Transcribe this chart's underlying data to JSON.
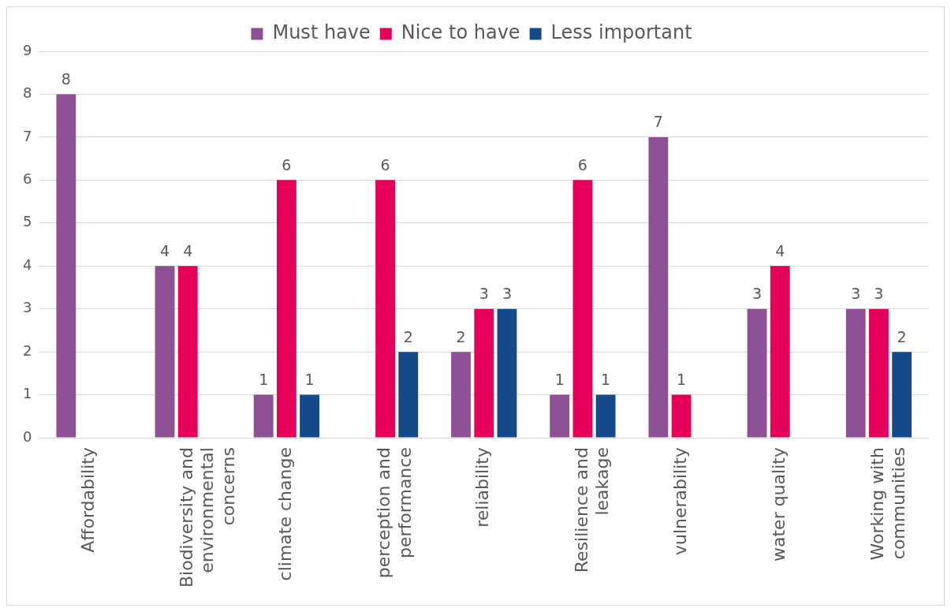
{
  "chart_data": {
    "type": "bar",
    "categories": [
      "Affordability",
      "Biodiversity and environmental concerns",
      "climate change",
      "perception and performance",
      "reliability",
      "Resilience and leakage",
      "vulnerability",
      "water quality",
      "Working with communities"
    ],
    "series": [
      {
        "name": "Must have",
        "color": "#8e5094",
        "values": [
          8,
          4,
          1,
          null,
          2,
          1,
          7,
          3,
          3
        ]
      },
      {
        "name": "Nice to have",
        "color": "#e5005a",
        "values": [
          null,
          4,
          6,
          6,
          3,
          6,
          1,
          4,
          3
        ]
      },
      {
        "name": "Less important",
        "color": "#154a8a",
        "values": [
          null,
          null,
          1,
          2,
          3,
          1,
          null,
          null,
          2
        ]
      }
    ],
    "ylim": [
      0,
      9
    ],
    "yticks": [
      0,
      1,
      2,
      3,
      4,
      5,
      6,
      7,
      8,
      9
    ],
    "grid": "y",
    "legend": "top",
    "data_labels": true
  }
}
